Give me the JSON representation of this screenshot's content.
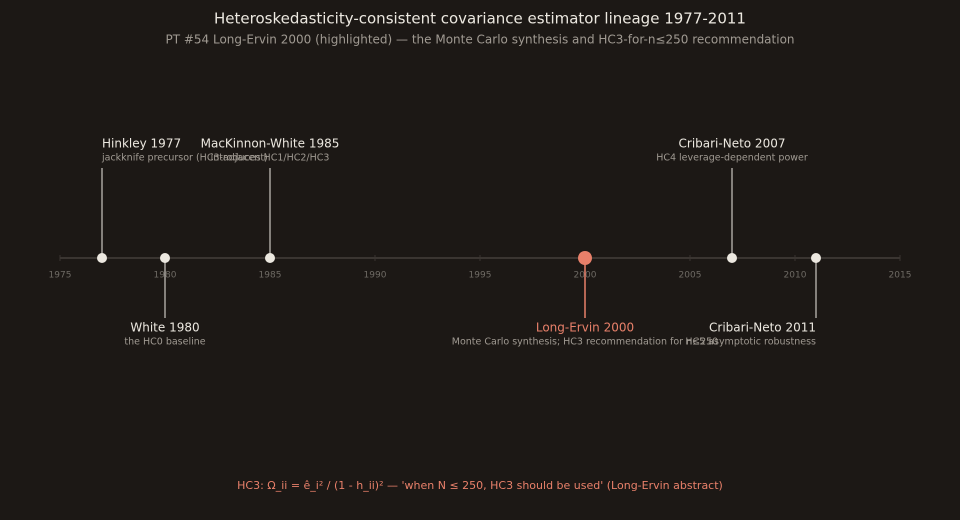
{
  "chart_data": {
    "type": "timeline",
    "title": "Heteroskedasticity-consistent covariance estimator lineage 1977-2011",
    "subtitle": "PT #54 Long-Ervin 2000 (highlighted) — the Monte Carlo synthesis and HC3-for-n≤250 recommendation",
    "xlim": [
      1975,
      2015
    ],
    "xticks": [
      1975,
      1980,
      1985,
      1990,
      1995,
      2000,
      2005,
      2010,
      2015
    ],
    "color": "#ece8e0",
    "highlight_color": "#e8806a",
    "events": [
      {
        "year": 1977,
        "label": "Hinkley 1977",
        "note": "jackknife precursor (HC3-adjacent)"
      },
      {
        "year": 1980,
        "label": "White 1980",
        "note": "the HC0 baseline"
      },
      {
        "year": 1985,
        "label": "MacKinnon-White 1985",
        "note": "introduces HC1/HC2/HC3"
      },
      {
        "year": 2000,
        "label": "Long-Ervin 2000",
        "note": "Monte Carlo synthesis; HC3 recommendation for n≤250",
        "highlight": true
      },
      {
        "year": 2007,
        "label": "Cribari-Neto 2007",
        "note": "HC4 leverage-dependent power"
      },
      {
        "year": 2011,
        "label": "Cribari-Neto 2011",
        "note": "HC5 asymptotic robustness"
      }
    ],
    "annotation": "HC3: Ω_ii = ê_i² / (1 - h_ii)² — 'when N ≤ 250, HC3 should be used' (Long-Ervin abstract)"
  }
}
